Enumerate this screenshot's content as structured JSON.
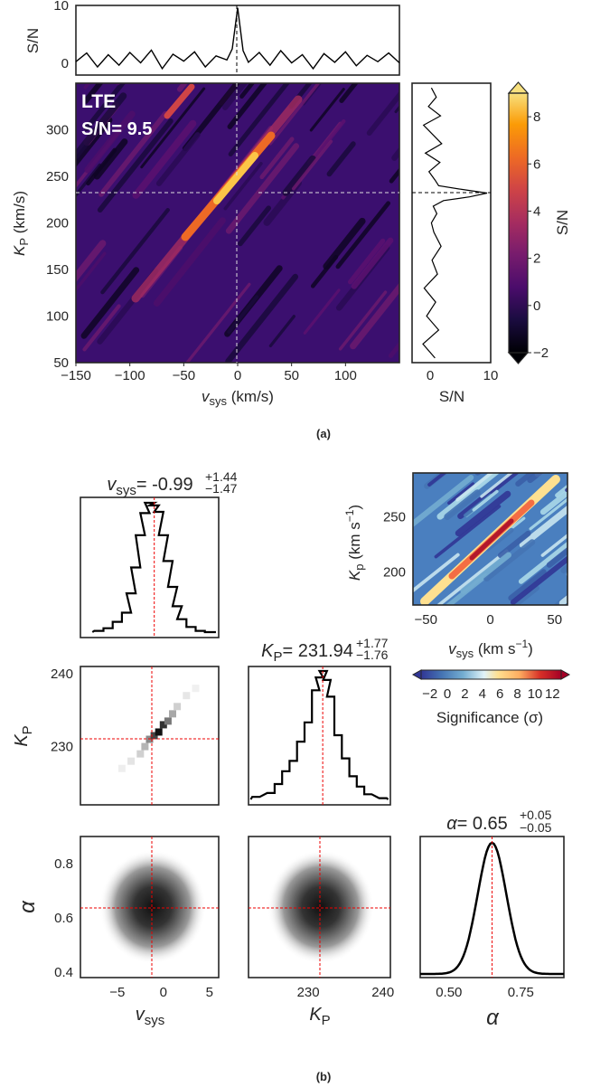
{
  "panel_a": {
    "caption": "(a)",
    "map_label": "LTE",
    "map_snr": "S/N= 9.5",
    "top_ylabel": "S/N",
    "right_xlabel": "S/N",
    "colorbar_label": "S/N",
    "xlabel_main": "v",
    "xlabel_sub": "sys",
    "xlabel_unit": " (km/s)",
    "ylabel_main": "K",
    "ylabel_sub": "P",
    "ylabel_unit": " (km/s)"
  },
  "panel_b": {
    "caption": "(b)",
    "vsys_title": {
      "sym": "v",
      "sub": "sys",
      "val": "= -0.99",
      "plus": "+1.44",
      "minus": "−1.47"
    },
    "kp_title": {
      "sym": "K",
      "sub": "P",
      "val": "= 231.94",
      "plus": "+1.77",
      "minus": "−1.76"
    },
    "alpha_title": {
      "sym": "α",
      "val": "= 0.65",
      "plus": "+0.05",
      "minus": "−0.05"
    },
    "corner_xlabel_1": {
      "sym": "v",
      "sub": "sys"
    },
    "corner_xlabel_2": {
      "sym": "K",
      "sub": "P"
    },
    "corner_xlabel_3": "α",
    "corner_ylabel_kp": {
      "sym": "K",
      "sub": "P"
    },
    "corner_ylabel_alpha": "α",
    "inset_xlabel": {
      "sym": "v",
      "sub": "sys",
      "unit": " (km s",
      "exp": "−1",
      "close": ")"
    },
    "inset_ylabel": {
      "sym": "K",
      "sub": "p",
      "unit": " (km s",
      "exp": "−1",
      "close": ")"
    },
    "inset_colorbar_label": "Significance (σ)"
  },
  "chart_data": [
    {
      "type": "heatmap",
      "title": "",
      "xlabel": "vsys (km/s)",
      "ylabel": "KP (km/s)",
      "xlim": [
        -150,
        150
      ],
      "ylim": [
        50,
        350
      ],
      "x_ticks": [
        -150,
        -100,
        -50,
        0,
        50,
        100
      ],
      "y_ticks": [
        50,
        100,
        150,
        200,
        250,
        300
      ],
      "colorbar": {
        "label": "S/N",
        "range": [
          -2,
          9
        ],
        "ticks": [
          -2,
          0,
          2,
          4,
          6,
          8
        ],
        "colormap": "inferno"
      },
      "annotations": [
        "LTE",
        "S/N= 9.5"
      ],
      "peak": {
        "vsys": 0,
        "kp": 232,
        "snr": 9.5
      },
      "crosshair": {
        "vsys": 0,
        "kp": 232
      }
    },
    {
      "type": "line",
      "xlabel": "",
      "ylabel": "S/N",
      "xlim": [
        -150,
        150
      ],
      "ylim": [
        -2,
        10
      ],
      "y_ticks": [
        0,
        10
      ],
      "x": [
        -150,
        -140,
        -130,
        -120,
        -110,
        -100,
        -90,
        -80,
        -70,
        -60,
        -50,
        -40,
        -30,
        -20,
        -10,
        -5,
        0,
        5,
        10,
        20,
        30,
        40,
        50,
        60,
        70,
        80,
        90,
        100,
        110,
        120,
        130,
        140,
        150
      ],
      "y": [
        0.3,
        1.8,
        -0.6,
        1.5,
        -0.3,
        1.9,
        0.1,
        2.3,
        -0.9,
        1.6,
        0.4,
        2.0,
        -0.6,
        1.3,
        0.6,
        2.5,
        9.6,
        2.2,
        0.2,
        1.9,
        -0.3,
        2.2,
        0.1,
        1.5,
        -0.9,
        1.7,
        0.2,
        2.0,
        -0.4,
        1.4,
        0.3,
        1.8,
        0.1
      ]
    },
    {
      "type": "line",
      "xlabel": "S/N",
      "ylabel": "",
      "xlim": [
        -3,
        10
      ],
      "ylim": [
        50,
        350
      ],
      "x_ticks": [
        0,
        10
      ],
      "y": [
        55,
        70,
        85,
        100,
        115,
        130,
        145,
        160,
        175,
        190,
        200,
        210,
        218,
        224,
        228,
        232,
        236,
        240,
        246,
        255,
        265,
        275,
        285,
        295,
        305,
        315,
        325,
        335,
        345
      ],
      "x": [
        0.8,
        -1.2,
        1.4,
        -0.6,
        0.9,
        -1.0,
        1.2,
        0.3,
        1.8,
        0.6,
        0.2,
        1.1,
        0.5,
        2.2,
        6.5,
        9.4,
        5.2,
        1.4,
        0.8,
        -0.2,
        1.6,
        -0.8,
        1.9,
        0.4,
        -1.1,
        1.7,
        -0.3,
        1.0,
        0.2
      ]
    },
    {
      "type": "line",
      "title": "vsys= -0.99 +1.44 -1.47",
      "xlabel": "vsys",
      "xlim": [
        -9,
        6
      ],
      "x": [
        -7.0,
        -6.0,
        -5.0,
        -4.0,
        -3.5,
        -3.0,
        -2.5,
        -2.0,
        -1.5,
        -1.0,
        -0.5,
        0.0,
        0.5,
        1.0,
        1.5,
        2.0,
        3.0,
        4.0,
        5.0
      ],
      "y": [
        0.01,
        0.03,
        0.08,
        0.15,
        0.3,
        0.5,
        0.75,
        0.92,
        1.0,
        0.98,
        0.93,
        0.75,
        0.55,
        0.35,
        0.2,
        0.1,
        0.04,
        0.01,
        0.0
      ]
    },
    {
      "type": "line",
      "title": "KP= 231.94 +1.77 -1.76",
      "xlabel": "KP",
      "xlim": [
        222,
        241
      ],
      "x": [
        223,
        225,
        226,
        227,
        228,
        229,
        230,
        231,
        231.5,
        232,
        232.5,
        233,
        234,
        235,
        236,
        237,
        238,
        240
      ],
      "y": [
        0.02,
        0.05,
        0.12,
        0.22,
        0.3,
        0.45,
        0.6,
        0.85,
        0.95,
        1.0,
        0.93,
        0.8,
        0.5,
        0.32,
        0.18,
        0.1,
        0.04,
        0.01
      ]
    },
    {
      "type": "line",
      "title": "α= 0.65 +0.05 -0.05",
      "xlabel": "α",
      "xlim": [
        0.4,
        0.9
      ],
      "x_ticks": [
        0.5,
        0.75
      ],
      "x": [
        0.4,
        0.45,
        0.5,
        0.55,
        0.6,
        0.63,
        0.65,
        0.67,
        0.7,
        0.75,
        0.8,
        0.85,
        0.9
      ],
      "y": [
        0.0,
        0.002,
        0.011,
        0.135,
        0.607,
        0.923,
        1.0,
        0.923,
        0.607,
        0.135,
        0.011,
        0.002,
        0.0
      ]
    },
    {
      "type": "heatmap",
      "xlabel": "vsys",
      "ylabel": "KP",
      "xlim": [
        -9,
        6
      ],
      "ylim": [
        222,
        241
      ],
      "x_ticks": [
        -5,
        0,
        5
      ],
      "y_ticks": [
        230,
        240
      ],
      "peak": {
        "vsys": -0.99,
        "kp": 231.94
      }
    },
    {
      "type": "heatmap",
      "xlabel": "vsys",
      "ylabel": "α",
      "xlim": [
        -9,
        6
      ],
      "ylim": [
        0.38,
        0.9
      ],
      "y_ticks": [
        0.4,
        0.6,
        0.8
      ],
      "peak": {
        "vsys": -0.99,
        "alpha": 0.65
      }
    },
    {
      "type": "heatmap",
      "xlabel": "KP",
      "ylabel": "α",
      "xlim": [
        222,
        241
      ],
      "ylim": [
        0.38,
        0.9
      ],
      "x_ticks": [
        230,
        240
      ],
      "peak": {
        "kp": 231.94,
        "alpha": 0.65
      }
    },
    {
      "type": "heatmap",
      "xlabel": "vsys (km s−1)",
      "ylabel": "Kp (km s−1)",
      "xlim": [
        -60,
        60
      ],
      "ylim": [
        170,
        290
      ],
      "x_ticks": [
        -50,
        0,
        50
      ],
      "y_ticks": [
        200,
        250
      ],
      "colorbar": {
        "label": "Significance (σ)",
        "range": [
          -3,
          13
        ],
        "ticks": [
          -2,
          0,
          2,
          4,
          6,
          8,
          10,
          12
        ],
        "colormap": "RdYlBu_r"
      },
      "peak": {
        "vsys": 0,
        "kp": 232
      }
    }
  ]
}
